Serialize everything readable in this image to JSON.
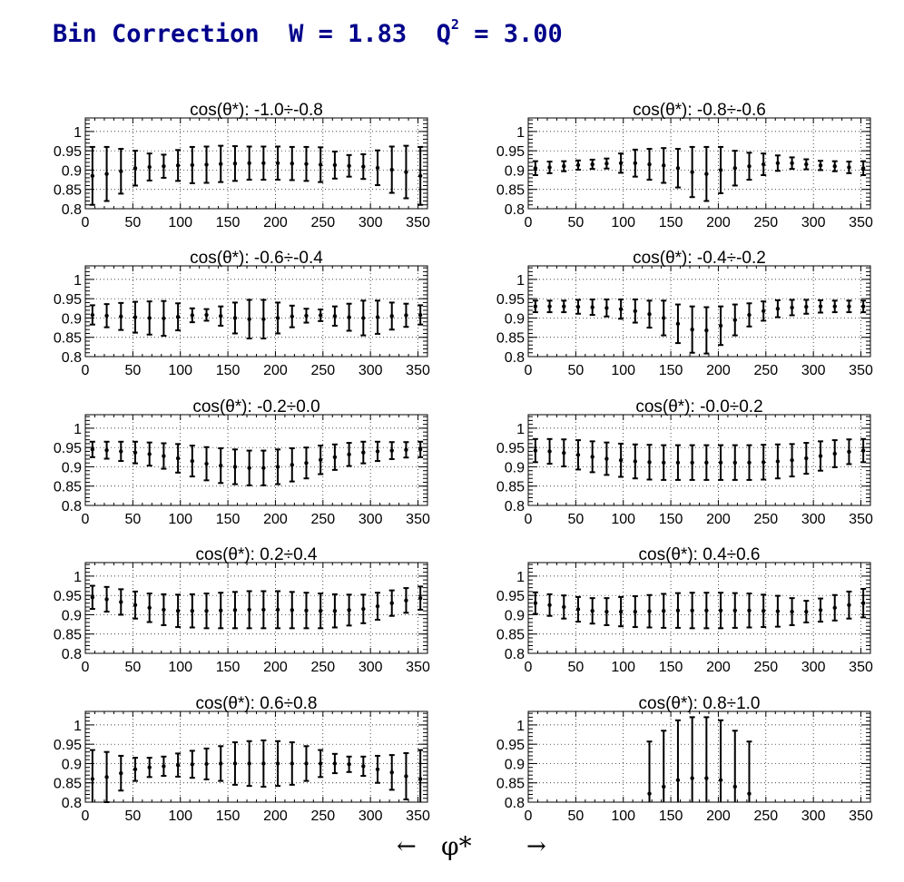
{
  "page": {
    "title_prefix": "Bin Correction  W = 1.83  Q",
    "title_sup": "2",
    "title_suffix": " = 3.00",
    "footer_left": "←",
    "footer_label": "φ*",
    "footer_right": "→"
  },
  "chart_data": [
    {
      "type": "scatter",
      "title": "cos(θ*): -1.0÷-0.8",
      "xlim": [
        0,
        360
      ],
      "ylim": [
        0.8,
        1.035
      ],
      "grid": true,
      "yticks": [
        "0.8",
        "0.85",
        "0.9",
        "0.95",
        "1"
      ],
      "xticks": [
        "0",
        "50",
        "100",
        "150",
        "200",
        "250",
        "300",
        "350"
      ],
      "x": [
        7.5,
        22.5,
        37.5,
        52.5,
        67.5,
        82.5,
        97.5,
        112.5,
        127.5,
        142.5,
        157.5,
        172.5,
        187.5,
        202.5,
        217.5,
        232.5,
        247.5,
        262.5,
        277.5,
        292.5,
        307.5,
        322.5,
        337.5,
        352.5
      ],
      "y": [
        0.885,
        0.89,
        0.897,
        0.905,
        0.908,
        0.91,
        0.912,
        0.913,
        0.914,
        0.916,
        0.917,
        0.918,
        0.918,
        0.918,
        0.917,
        0.916,
        0.914,
        0.913,
        0.911,
        0.909,
        0.906,
        0.901,
        0.895,
        0.885
      ],
      "err": [
        0.075,
        0.07,
        0.058,
        0.045,
        0.035,
        0.03,
        0.04,
        0.047,
        0.047,
        0.047,
        0.045,
        0.043,
        0.043,
        0.043,
        0.043,
        0.044,
        0.045,
        0.035,
        0.028,
        0.032,
        0.045,
        0.06,
        0.068,
        0.075
      ]
    },
    {
      "type": "scatter",
      "title": "cos(θ*): -0.8÷-0.6",
      "xlim": [
        0,
        360
      ],
      "ylim": [
        0.8,
        1.035
      ],
      "grid": true,
      "yticks": [
        "0.8",
        "0.85",
        "0.9",
        "0.95",
        "1"
      ],
      "xticks": [
        "0",
        "50",
        "100",
        "150",
        "200",
        "250",
        "300",
        "350"
      ],
      "x": [
        7.5,
        22.5,
        37.5,
        52.5,
        67.5,
        82.5,
        97.5,
        112.5,
        127.5,
        142.5,
        157.5,
        172.5,
        187.5,
        202.5,
        217.5,
        232.5,
        247.5,
        262.5,
        277.5,
        292.5,
        307.5,
        322.5,
        337.5,
        352.5
      ],
      "y": [
        0.905,
        0.907,
        0.91,
        0.913,
        0.915,
        0.917,
        0.918,
        0.918,
        0.915,
        0.912,
        0.905,
        0.895,
        0.89,
        0.9,
        0.905,
        0.91,
        0.915,
        0.918,
        0.918,
        0.915,
        0.912,
        0.91,
        0.907,
        0.905
      ],
      "err": [
        0.018,
        0.015,
        0.013,
        0.012,
        0.012,
        0.013,
        0.025,
        0.035,
        0.04,
        0.045,
        0.05,
        0.065,
        0.07,
        0.06,
        0.045,
        0.035,
        0.028,
        0.02,
        0.015,
        0.013,
        0.012,
        0.013,
        0.015,
        0.018
      ]
    },
    {
      "type": "scatter",
      "title": "cos(θ*): -0.6÷-0.4",
      "xlim": [
        0,
        360
      ],
      "ylim": [
        0.8,
        1.035
      ],
      "grid": true,
      "yticks": [
        "0.8",
        "0.85",
        "0.9",
        "0.95",
        "1"
      ],
      "xticks": [
        "0",
        "50",
        "100",
        "150",
        "200",
        "250",
        "300",
        "350"
      ],
      "x": [
        7.5,
        22.5,
        37.5,
        52.5,
        67.5,
        82.5,
        97.5,
        112.5,
        127.5,
        142.5,
        157.5,
        172.5,
        187.5,
        202.5,
        217.5,
        232.5,
        247.5,
        262.5,
        277.5,
        292.5,
        307.5,
        322.5,
        337.5,
        352.5
      ],
      "y": [
        0.908,
        0.906,
        0.904,
        0.902,
        0.9,
        0.899,
        0.903,
        0.907,
        0.908,
        0.905,
        0.9,
        0.897,
        0.897,
        0.9,
        0.904,
        0.906,
        0.907,
        0.905,
        0.902,
        0.9,
        0.902,
        0.905,
        0.907,
        0.908
      ],
      "err": [
        0.025,
        0.03,
        0.035,
        0.04,
        0.043,
        0.045,
        0.035,
        0.018,
        0.015,
        0.025,
        0.04,
        0.05,
        0.05,
        0.04,
        0.028,
        0.018,
        0.015,
        0.025,
        0.035,
        0.045,
        0.043,
        0.035,
        0.03,
        0.025
      ]
    },
    {
      "type": "scatter",
      "title": "cos(θ*): -0.4÷-0.2",
      "xlim": [
        0,
        360
      ],
      "ylim": [
        0.8,
        1.035
      ],
      "grid": true,
      "yticks": [
        "0.8",
        "0.85",
        "0.9",
        "0.95",
        "1"
      ],
      "xticks": [
        "0",
        "50",
        "100",
        "150",
        "200",
        "250",
        "300",
        "350"
      ],
      "x": [
        7.5,
        22.5,
        37.5,
        52.5,
        67.5,
        82.5,
        97.5,
        112.5,
        127.5,
        142.5,
        157.5,
        172.5,
        187.5,
        202.5,
        217.5,
        232.5,
        247.5,
        262.5,
        277.5,
        292.5,
        307.5,
        322.5,
        337.5,
        352.5
      ],
      "y": [
        0.93,
        0.93,
        0.93,
        0.929,
        0.928,
        0.926,
        0.923,
        0.918,
        0.91,
        0.9,
        0.885,
        0.87,
        0.868,
        0.88,
        0.895,
        0.908,
        0.918,
        0.924,
        0.927,
        0.929,
        0.93,
        0.93,
        0.93,
        0.93
      ],
      "err": [
        0.015,
        0.015,
        0.015,
        0.018,
        0.02,
        0.022,
        0.025,
        0.03,
        0.035,
        0.045,
        0.05,
        0.06,
        0.06,
        0.05,
        0.04,
        0.03,
        0.025,
        0.022,
        0.02,
        0.018,
        0.016,
        0.015,
        0.015,
        0.015
      ]
    },
    {
      "type": "scatter",
      "title": "cos(θ*): -0.2÷0.0",
      "xlim": [
        0,
        360
      ],
      "ylim": [
        0.8,
        1.035
      ],
      "grid": true,
      "yticks": [
        "0.8",
        "0.85",
        "0.9",
        "0.95",
        "1"
      ],
      "xticks": [
        "0",
        "50",
        "100",
        "150",
        "200",
        "250",
        "300",
        "350"
      ],
      "x": [
        7.5,
        22.5,
        37.5,
        52.5,
        67.5,
        82.5,
        97.5,
        112.5,
        127.5,
        142.5,
        157.5,
        172.5,
        187.5,
        202.5,
        217.5,
        232.5,
        247.5,
        262.5,
        277.5,
        292.5,
        307.5,
        322.5,
        337.5,
        352.5
      ],
      "y": [
        0.945,
        0.943,
        0.94,
        0.937,
        0.933,
        0.928,
        0.922,
        0.915,
        0.908,
        0.903,
        0.9,
        0.897,
        0.897,
        0.9,
        0.905,
        0.91,
        0.918,
        0.925,
        0.932,
        0.937,
        0.94,
        0.942,
        0.944,
        0.945
      ],
      "err": [
        0.02,
        0.022,
        0.025,
        0.028,
        0.03,
        0.033,
        0.037,
        0.04,
        0.043,
        0.045,
        0.045,
        0.045,
        0.045,
        0.045,
        0.043,
        0.04,
        0.037,
        0.033,
        0.03,
        0.028,
        0.025,
        0.022,
        0.02,
        0.02
      ]
    },
    {
      "type": "scatter",
      "title": "cos(θ*): -0.0÷0.2",
      "xlim": [
        0,
        360
      ],
      "ylim": [
        0.8,
        1.035
      ],
      "grid": true,
      "yticks": [
        "0.8",
        "0.85",
        "0.9",
        "0.95",
        "1"
      ],
      "xticks": [
        "0",
        "50",
        "100",
        "150",
        "200",
        "250",
        "300",
        "350"
      ],
      "x": [
        7.5,
        22.5,
        37.5,
        52.5,
        67.5,
        82.5,
        97.5,
        112.5,
        127.5,
        142.5,
        157.5,
        172.5,
        187.5,
        202.5,
        217.5,
        232.5,
        247.5,
        262.5,
        277.5,
        292.5,
        307.5,
        322.5,
        337.5,
        352.5
      ],
      "y": [
        0.942,
        0.94,
        0.936,
        0.931,
        0.926,
        0.921,
        0.917,
        0.914,
        0.912,
        0.911,
        0.911,
        0.911,
        0.911,
        0.911,
        0.911,
        0.911,
        0.912,
        0.914,
        0.917,
        0.922,
        0.928,
        0.934,
        0.939,
        0.942
      ],
      "err": [
        0.03,
        0.032,
        0.035,
        0.038,
        0.04,
        0.042,
        0.043,
        0.044,
        0.045,
        0.045,
        0.045,
        0.045,
        0.045,
        0.045,
        0.045,
        0.045,
        0.045,
        0.044,
        0.042,
        0.04,
        0.038,
        0.035,
        0.032,
        0.03
      ]
    },
    {
      "type": "scatter",
      "title": "cos(θ*): 0.2÷0.4",
      "xlim": [
        0,
        360
      ],
      "ylim": [
        0.8,
        1.035
      ],
      "grid": true,
      "yticks": [
        "0.8",
        "0.85",
        "0.9",
        "0.95",
        "1"
      ],
      "xticks": [
        "0",
        "50",
        "100",
        "150",
        "200",
        "250",
        "300",
        "350"
      ],
      "x": [
        7.5,
        22.5,
        37.5,
        52.5,
        67.5,
        82.5,
        97.5,
        112.5,
        127.5,
        142.5,
        157.5,
        172.5,
        187.5,
        202.5,
        217.5,
        232.5,
        247.5,
        262.5,
        277.5,
        292.5,
        307.5,
        322.5,
        337.5,
        352.5
      ],
      "y": [
        0.945,
        0.94,
        0.933,
        0.925,
        0.918,
        0.913,
        0.91,
        0.91,
        0.91,
        0.911,
        0.912,
        0.913,
        0.913,
        0.913,
        0.912,
        0.911,
        0.91,
        0.91,
        0.912,
        0.915,
        0.922,
        0.93,
        0.937,
        0.943
      ],
      "err": [
        0.03,
        0.032,
        0.033,
        0.035,
        0.037,
        0.04,
        0.042,
        0.043,
        0.045,
        0.046,
        0.047,
        0.048,
        0.048,
        0.048,
        0.047,
        0.046,
        0.045,
        0.043,
        0.04,
        0.037,
        0.035,
        0.033,
        0.032,
        0.03
      ]
    },
    {
      "type": "scatter",
      "title": "cos(θ*): 0.4÷0.6",
      "xlim": [
        0,
        360
      ],
      "ylim": [
        0.8,
        1.035
      ],
      "grid": true,
      "yticks": [
        "0.8",
        "0.85",
        "0.9",
        "0.95",
        "1"
      ],
      "xticks": [
        "0",
        "50",
        "100",
        "150",
        "200",
        "250",
        "300",
        "350"
      ],
      "x": [
        7.5,
        22.5,
        37.5,
        52.5,
        67.5,
        82.5,
        97.5,
        112.5,
        127.5,
        142.5,
        157.5,
        172.5,
        187.5,
        202.5,
        217.5,
        232.5,
        247.5,
        262.5,
        277.5,
        292.5,
        307.5,
        322.5,
        337.5,
        352.5
      ],
      "y": [
        0.93,
        0.925,
        0.92,
        0.914,
        0.91,
        0.908,
        0.908,
        0.908,
        0.909,
        0.91,
        0.911,
        0.911,
        0.911,
        0.911,
        0.911,
        0.911,
        0.91,
        0.909,
        0.908,
        0.908,
        0.912,
        0.918,
        0.925,
        0.93
      ],
      "err": [
        0.028,
        0.028,
        0.03,
        0.032,
        0.033,
        0.035,
        0.038,
        0.04,
        0.042,
        0.044,
        0.045,
        0.046,
        0.046,
        0.046,
        0.045,
        0.044,
        0.042,
        0.04,
        0.035,
        0.028,
        0.03,
        0.033,
        0.035,
        0.037
      ]
    },
    {
      "type": "scatter",
      "title": "cos(θ*): 0.6÷0.8",
      "xlim": [
        0,
        360
      ],
      "ylim": [
        0.8,
        1.035
      ],
      "grid": true,
      "yticks": [
        "0.8",
        "0.85",
        "0.9",
        "0.95",
        "1"
      ],
      "xticks": [
        "0",
        "50",
        "100",
        "150",
        "200",
        "250",
        "300",
        "350"
      ],
      "x": [
        7.5,
        22.5,
        37.5,
        52.5,
        67.5,
        82.5,
        97.5,
        112.5,
        127.5,
        142.5,
        157.5,
        172.5,
        187.5,
        202.5,
        217.5,
        232.5,
        247.5,
        262.5,
        277.5,
        292.5,
        307.5,
        322.5,
        337.5,
        352.5
      ],
      "y": [
        0.86,
        0.865,
        0.875,
        0.885,
        0.89,
        0.893,
        0.896,
        0.898,
        0.899,
        0.9,
        0.9,
        0.9,
        0.9,
        0.9,
        0.9,
        0.9,
        0.9,
        0.9,
        0.898,
        0.893,
        0.885,
        0.877,
        0.867,
        0.86
      ],
      "err": [
        0.075,
        0.065,
        0.045,
        0.03,
        0.025,
        0.025,
        0.03,
        0.035,
        0.04,
        0.045,
        0.055,
        0.058,
        0.06,
        0.058,
        0.055,
        0.045,
        0.035,
        0.025,
        0.02,
        0.025,
        0.035,
        0.045,
        0.06,
        0.075
      ]
    },
    {
      "type": "scatter",
      "title": "cos(θ*): 0.8÷1.0",
      "xlim": [
        0,
        360
      ],
      "ylim": [
        0.8,
        1.035
      ],
      "grid": true,
      "yticks": [
        "0.8",
        "0.85",
        "0.9",
        "0.95",
        "1"
      ],
      "xticks": [
        "0",
        "50",
        "100",
        "150",
        "200",
        "250",
        "300",
        "350"
      ],
      "x": [
        127.5,
        142.5,
        157.5,
        172.5,
        187.5,
        202.5,
        217.5,
        232.5
      ],
      "y": [
        0.822,
        0.84,
        0.857,
        0.862,
        0.862,
        0.857,
        0.84,
        0.822
      ],
      "err": [
        0.135,
        0.145,
        0.155,
        0.158,
        0.158,
        0.155,
        0.145,
        0.135
      ]
    }
  ]
}
